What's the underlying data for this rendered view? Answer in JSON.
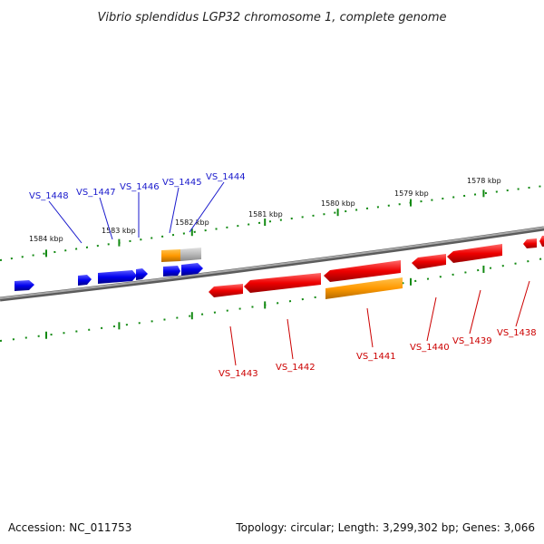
{
  "title": "Vibrio splendidus LGP32 chromosome 1, complete genome",
  "footer": {
    "accession": "Accession: NC_011753",
    "summary": "Topology: circular; Length: 3,299,302 bp; Genes: 3,066"
  },
  "colors": {
    "forward_gene": "#0000ee",
    "reverse_gene": "#ee0000",
    "rna_gene": "#ff9900",
    "backbone": "#808080",
    "tick": "#138a13",
    "blue_label": "#1a1acc",
    "red_label": "#cc0000"
  },
  "kbp_labels": [
    "1584 kbp",
    "1583 kbp",
    "1582 kbp",
    "1581 kbp",
    "1580 kbp",
    "1579 kbp",
    "1578 kbp"
  ],
  "gene_labels_forward": [
    "VS_1448",
    "VS_1447",
    "VS_1446",
    "VS_1445",
    "VS_1444"
  ],
  "gene_labels_reverse": [
    "VS_1443",
    "VS_1442",
    "VS_1441",
    "VS_1440",
    "VS_1439",
    "VS_1438"
  ]
}
